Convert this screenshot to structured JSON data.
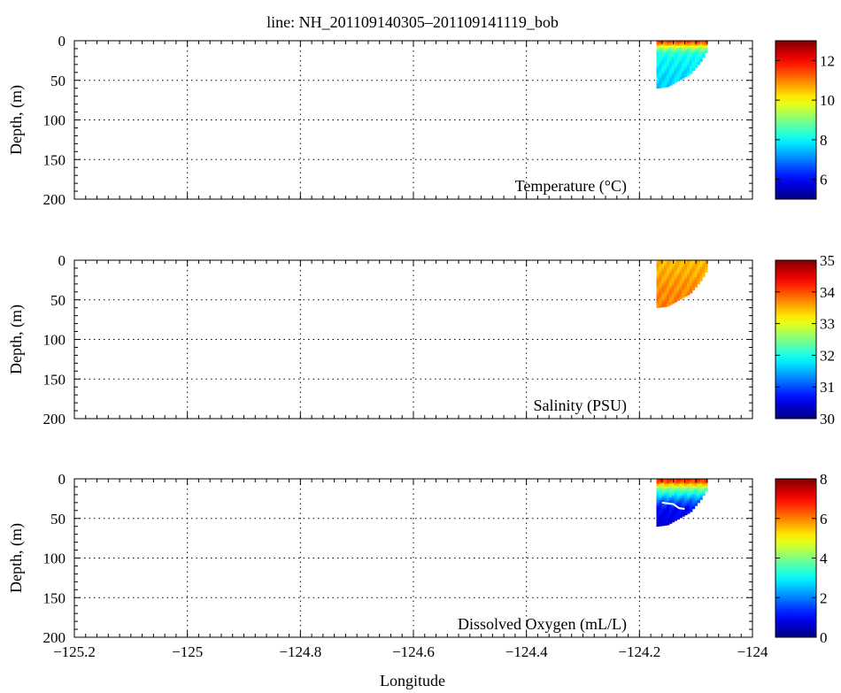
{
  "title": "line: NH_201109140305–201109141119_bob",
  "xlabel": "Longitude",
  "chart_data": [
    {
      "type": "heatmap",
      "panel": "temperature",
      "label": "Temperature (°C)",
      "ylabel": "Depth, (m)",
      "xlim": [
        -125.2,
        -124.0
      ],
      "ylim": [
        0,
        200
      ],
      "y_reversed": true,
      "xticks": [
        -125.2,
        -125,
        -124.8,
        -124.6,
        -124.4,
        -124.2,
        -124
      ],
      "yticks": [
        0,
        50,
        100,
        150,
        200
      ],
      "grid": true,
      "colorbar": {
        "min": 5,
        "max": 13,
        "ticks": [
          6,
          8,
          10,
          12
        ]
      },
      "section": {
        "lon_start": -124.17,
        "lon_end": -124.08,
        "bottom_depth": [
          [
            -124.17,
            60
          ],
          [
            -124.15,
            58
          ],
          [
            -124.13,
            50
          ],
          [
            -124.11,
            42
          ],
          [
            -124.09,
            25
          ],
          [
            -124.08,
            12
          ],
          [
            -124.08,
            0
          ]
        ],
        "profile": [
          [
            0,
            11.8
          ],
          [
            5,
            10.6
          ],
          [
            10,
            9.2
          ],
          [
            15,
            8.3
          ],
          [
            25,
            8.0
          ],
          [
            40,
            7.8
          ],
          [
            60,
            7.6
          ]
        ]
      }
    },
    {
      "type": "heatmap",
      "panel": "salinity",
      "label": "Salinity (PSU)",
      "ylabel": "Depth, (m)",
      "xlim": [
        -125.2,
        -124.0
      ],
      "ylim": [
        0,
        200
      ],
      "y_reversed": true,
      "xticks": [
        -125.2,
        -125,
        -124.8,
        -124.6,
        -124.4,
        -124.2,
        -124
      ],
      "yticks": [
        0,
        50,
        100,
        150,
        200
      ],
      "grid": true,
      "colorbar": {
        "min": 30,
        "max": 35,
        "ticks": [
          30,
          31,
          32,
          33,
          34,
          35
        ]
      },
      "section": {
        "lon_start": -124.17,
        "lon_end": -124.08,
        "bottom_depth": [
          [
            -124.17,
            60
          ],
          [
            -124.15,
            58
          ],
          [
            -124.13,
            50
          ],
          [
            -124.11,
            42
          ],
          [
            -124.09,
            25
          ],
          [
            -124.08,
            12
          ],
          [
            -124.08,
            0
          ]
        ],
        "profile": [
          [
            0,
            33.45
          ],
          [
            10,
            33.5
          ],
          [
            25,
            33.6
          ],
          [
            40,
            33.7
          ],
          [
            60,
            33.75
          ]
        ]
      }
    },
    {
      "type": "heatmap",
      "panel": "oxygen",
      "label": "Dissolved Oxygen (mL/L)",
      "ylabel": "Depth, (m)",
      "xlim": [
        -125.2,
        -124.0
      ],
      "ylim": [
        0,
        200
      ],
      "y_reversed": true,
      "xticks": [
        -125.2,
        -125,
        -124.8,
        -124.6,
        -124.4,
        -124.2,
        -124
      ],
      "yticks": [
        0,
        50,
        100,
        150,
        200
      ],
      "grid": true,
      "colorbar": {
        "min": 0,
        "max": 8,
        "ticks": [
          0,
          2,
          4,
          6,
          8
        ]
      },
      "section": {
        "lon_start": -124.17,
        "lon_end": -124.08,
        "bottom_depth": [
          [
            -124.17,
            60
          ],
          [
            -124.15,
            58
          ],
          [
            -124.13,
            50
          ],
          [
            -124.11,
            42
          ],
          [
            -124.09,
            25
          ],
          [
            -124.08,
            12
          ],
          [
            -124.08,
            0
          ]
        ],
        "profile": [
          [
            0,
            6.8
          ],
          [
            5,
            6.2
          ],
          [
            10,
            4.5
          ],
          [
            18,
            3.2
          ],
          [
            28,
            1.8
          ],
          [
            38,
            1.0
          ],
          [
            60,
            0.6
          ]
        ],
        "contour": [
          [
            -124.16,
            30
          ],
          [
            -124.14,
            32
          ],
          [
            -124.13,
            37
          ],
          [
            -124.12,
            38
          ]
        ]
      }
    }
  ]
}
